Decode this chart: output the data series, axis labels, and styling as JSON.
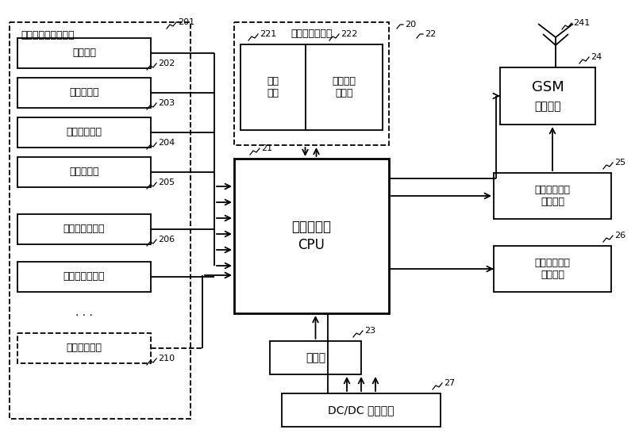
{
  "background_color": "#ffffff",
  "sensor_box_label": "基站监控设备传感源",
  "panel_box_label": "基站监控器面板",
  "cpu_label1": "中央处理器",
  "cpu_label2": "CPU",
  "cpu_num": "21",
  "storage_label": "存储器",
  "storage_num": "23",
  "dcdc_label": "DC/DC 转换电源",
  "dcdc_num": "27",
  "gsm_label1": "GSM",
  "gsm_label2": "通信模块",
  "gsm_num": "24",
  "gsm_antenna_num": "241",
  "remote_label": "远程遥控设备\n输入接口",
  "remote_num": "25",
  "alarm_label": "声光告警设备\n输入接口",
  "alarm_num": "26",
  "op_keyboard_label": "操作\n键盘",
  "op_keyboard_num": "221",
  "lcd_label": "汉字液晶\n显示屏",
  "lcd_num": "222",
  "panel_main_num": "20",
  "sensor_group_num": "201",
  "sensors": [
    {
      "label": "烟雾探头",
      "num": "202"
    },
    {
      "label": "外设防盗器",
      "num": "203"
    },
    {
      "label": "温、湿度探头",
      "num": "204"
    },
    {
      "label": "门窗和红外",
      "num": "205"
    },
    {
      "label": "电池电压变送器",
      "num": "206"
    },
    {
      "label": "交流电压变送器",
      "num": ""
    },
    {
      "label": "智能电源设备",
      "num": "210"
    }
  ]
}
